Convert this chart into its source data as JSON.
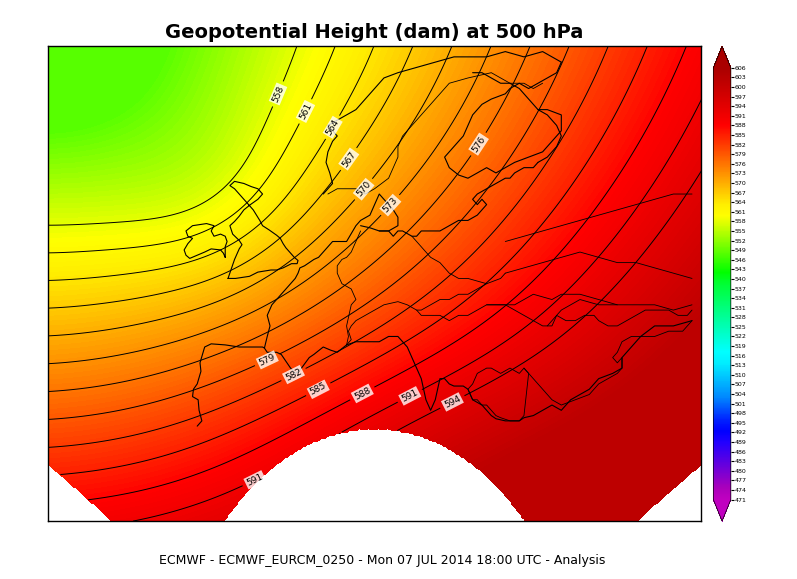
{
  "title": "Geopotential Height (dam) at 500 hPa",
  "footer": "ECMWF - ECMWF_EURCM_0250 - Mon 07 JUL 2014 18:00 UTC - Analysis",
  "colorbar_levels": [
    471,
    474,
    477,
    480,
    483,
    486,
    489,
    492,
    495,
    498,
    501,
    504,
    507,
    510,
    513,
    516,
    519,
    522,
    525,
    528,
    531,
    534,
    537,
    540,
    543,
    546,
    549,
    552,
    555,
    558,
    561,
    564,
    567,
    570,
    573,
    576,
    579,
    582,
    585,
    588,
    591,
    594,
    597,
    600,
    603,
    606
  ],
  "contour_levels": [
    558,
    561,
    564,
    567,
    570,
    573,
    576,
    579,
    582,
    585,
    588,
    591,
    594
  ],
  "vmin": 471,
  "vmax": 606,
  "background_color": "#ffffff",
  "lon_min": -25,
  "lon_max": 45,
  "lat_min": 27,
  "lat_max": 72,
  "fig_width": 7.97,
  "fig_height": 5.79,
  "title_fontsize": 14,
  "footer_fontsize": 9
}
